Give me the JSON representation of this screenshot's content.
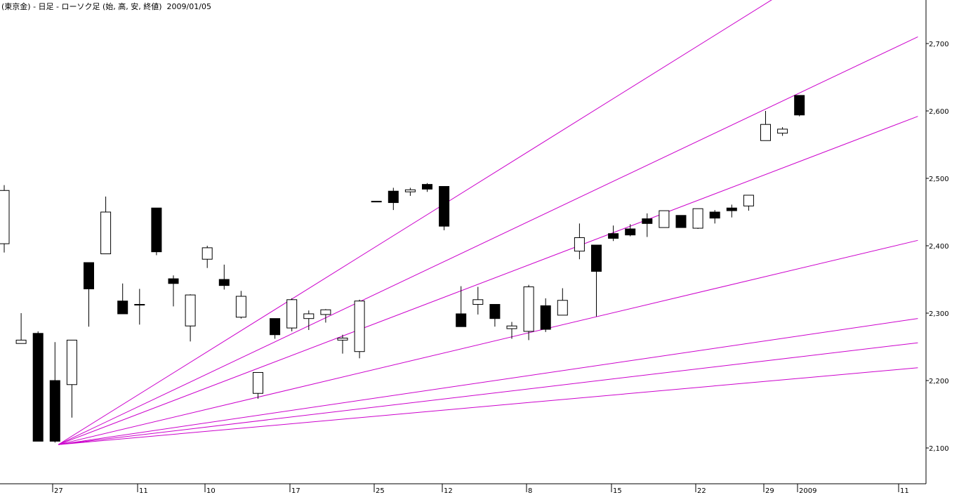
{
  "header": {
    "title": "(東京金) - 日足 - ローソク足 (始, 高, 安, 終値)  2009/01/05"
  },
  "colors": {
    "background": "#ffffff",
    "axis": "#000000",
    "fan": "#cc00cc",
    "bear_body": "#000000",
    "bull_body": "#ffffff"
  },
  "chart_data": {
    "type": "candlestick",
    "title": "(東京金) - 日足 - ローソク足 (始, 高, 安, 終値)  2009/01/05",
    "ylim": [
      2030,
      2770
    ],
    "yticks": [
      {
        "value": 2100,
        "label": "2,100"
      },
      {
        "value": 2200,
        "label": "2,200"
      },
      {
        "value": 2300,
        "label": "2,300"
      },
      {
        "value": 2400,
        "label": "2,400"
      },
      {
        "value": 2500,
        "label": "2,500"
      },
      {
        "value": 2600,
        "label": "2,600"
      },
      {
        "value": 2700,
        "label": "2,700"
      }
    ],
    "xticks": [
      {
        "i": 3,
        "label": "27"
      },
      {
        "i": 8,
        "label": "11"
      },
      {
        "i": 12,
        "label": "10"
      },
      {
        "i": 17,
        "label": "17"
      },
      {
        "i": 22,
        "label": "25"
      },
      {
        "i": 26,
        "label": "12"
      },
      {
        "i": 31,
        "label": "8"
      },
      {
        "i": 36,
        "label": "15"
      },
      {
        "i": 41,
        "label": "22"
      },
      {
        "i": 45,
        "label": "29"
      },
      {
        "i": 47,
        "label": "2009"
      },
      {
        "i": 53,
        "label": "11"
      }
    ],
    "candles": [
      {
        "i": 0,
        "o": 2403,
        "h": 2490,
        "l": 2390,
        "c": 2482
      },
      {
        "i": 1,
        "o": 2255,
        "h": 2300,
        "l": 2255,
        "c": 2260
      },
      {
        "i": 2,
        "o": 2270,
        "h": 2273,
        "l": 2110,
        "c": 2110
      },
      {
        "i": 3,
        "o": 2200,
        "h": 2257,
        "l": 2108,
        "c": 2110
      },
      {
        "i": 4,
        "o": 2194,
        "h": 2260,
        "l": 2145,
        "c": 2260
      },
      {
        "i": 5,
        "o": 2375,
        "h": 2375,
        "l": 2280,
        "c": 2336
      },
      {
        "i": 6,
        "o": 2388,
        "h": 2473,
        "l": 2388,
        "c": 2450
      },
      {
        "i": 7,
        "o": 2318,
        "h": 2344,
        "l": 2299,
        "c": 2299
      },
      {
        "i": 8,
        "o": 2313,
        "h": 2336,
        "l": 2283,
        "c": 2313
      },
      {
        "i": 9,
        "o": 2456,
        "h": 2456,
        "l": 2386,
        "c": 2391
      },
      {
        "i": 10,
        "o": 2351,
        "h": 2356,
        "l": 2310,
        "c": 2344
      },
      {
        "i": 11,
        "o": 2281,
        "h": 2328,
        "l": 2258,
        "c": 2327
      },
      {
        "i": 12,
        "o": 2380,
        "h": 2400,
        "l": 2367,
        "c": 2397
      },
      {
        "i": 13,
        "o": 2350,
        "h": 2372,
        "l": 2335,
        "c": 2341
      },
      {
        "i": 14,
        "o": 2294,
        "h": 2333,
        "l": 2292,
        "c": 2325
      },
      {
        "i": 15,
        "o": 2181,
        "h": 2212,
        "l": 2173,
        "c": 2212
      },
      {
        "i": 16,
        "o": 2292,
        "h": 2292,
        "l": 2262,
        "c": 2268
      },
      {
        "i": 17,
        "o": 2278,
        "h": 2322,
        "l": 2273,
        "c": 2320
      },
      {
        "i": 18,
        "o": 2292,
        "h": 2304,
        "l": 2275,
        "c": 2299
      },
      {
        "i": 19,
        "o": 2298,
        "h": 2306,
        "l": 2286,
        "c": 2305
      },
      {
        "i": 20,
        "o": 2260,
        "h": 2268,
        "l": 2240,
        "c": 2263
      },
      {
        "i": 21,
        "o": 2243,
        "h": 2320,
        "l": 2233,
        "c": 2318
      },
      {
        "i": 22,
        "o": 2466,
        "h": 2466,
        "l": 2466,
        "c": 2466
      },
      {
        "i": 23,
        "o": 2481,
        "h": 2486,
        "l": 2453,
        "c": 2464
      },
      {
        "i": 24,
        "o": 2480,
        "h": 2486,
        "l": 2474,
        "c": 2483
      },
      {
        "i": 25,
        "o": 2491,
        "h": 2493,
        "l": 2480,
        "c": 2484
      },
      {
        "i": 26,
        "o": 2488,
        "h": 2488,
        "l": 2423,
        "c": 2429
      },
      {
        "i": 27,
        "o": 2299,
        "h": 2340,
        "l": 2280,
        "c": 2280
      },
      {
        "i": 28,
        "o": 2313,
        "h": 2339,
        "l": 2298,
        "c": 2320
      },
      {
        "i": 29,
        "o": 2313,
        "h": 2313,
        "l": 2280,
        "c": 2292
      },
      {
        "i": 30,
        "o": 2277,
        "h": 2287,
        "l": 2262,
        "c": 2281
      },
      {
        "i": 31,
        "o": 2273,
        "h": 2342,
        "l": 2260,
        "c": 2339
      },
      {
        "i": 32,
        "o": 2311,
        "h": 2322,
        "l": 2272,
        "c": 2276
      },
      {
        "i": 33,
        "o": 2297,
        "h": 2337,
        "l": 2297,
        "c": 2319
      },
      {
        "i": 34,
        "o": 2392,
        "h": 2433,
        "l": 2380,
        "c": 2412
      },
      {
        "i": 35,
        "o": 2401,
        "h": 2401,
        "l": 2295,
        "c": 2362
      },
      {
        "i": 36,
        "o": 2418,
        "h": 2430,
        "l": 2407,
        "c": 2411
      },
      {
        "i": 37,
        "o": 2425,
        "h": 2432,
        "l": 2414,
        "c": 2416
      },
      {
        "i": 38,
        "o": 2440,
        "h": 2448,
        "l": 2413,
        "c": 2433
      },
      {
        "i": 39,
        "o": 2427,
        "h": 2452,
        "l": 2427,
        "c": 2452
      },
      {
        "i": 40,
        "o": 2445,
        "h": 2445,
        "l": 2427,
        "c": 2427
      },
      {
        "i": 41,
        "o": 2426,
        "h": 2455,
        "l": 2425,
        "c": 2455
      },
      {
        "i": 42,
        "o": 2450,
        "h": 2453,
        "l": 2433,
        "c": 2441
      },
      {
        "i": 43,
        "o": 2456,
        "h": 2461,
        "l": 2442,
        "c": 2452
      },
      {
        "i": 44,
        "o": 2459,
        "h": 2475,
        "l": 2452,
        "c": 2475
      },
      {
        "i": 45,
        "o": 2556,
        "h": 2600,
        "l": 2556,
        "c": 2580
      },
      {
        "i": 46,
        "o": 2567,
        "h": 2576,
        "l": 2563,
        "c": 2573
      },
      {
        "i": 47,
        "o": 2623,
        "h": 2623,
        "l": 2592,
        "c": 2594
      }
    ],
    "gann_fan": {
      "anchor": {
        "i": 3.2,
        "value": 2105
      },
      "ends": [
        {
          "i": 54,
          "value": 2900
        },
        {
          "i": 54,
          "value": 2710
        },
        {
          "i": 54,
          "value": 2592
        },
        {
          "i": 54,
          "value": 2408
        },
        {
          "i": 54,
          "value": 2292
        },
        {
          "i": 54,
          "value": 2256
        },
        {
          "i": 54,
          "value": 2219
        }
      ]
    }
  }
}
